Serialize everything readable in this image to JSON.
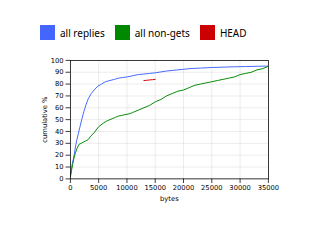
{
  "chart_data": {
    "type": "line",
    "xlabel": "bytes",
    "ylabel": "cumulative %",
    "xlim": [
      0,
      35000
    ],
    "ylim": [
      0,
      100
    ],
    "xticks": [
      0,
      5000,
      10000,
      15000,
      20000,
      25000,
      30000,
      35000
    ],
    "yticks": [
      0,
      10,
      20,
      30,
      40,
      50,
      60,
      70,
      80,
      90,
      100
    ],
    "grid": true,
    "legend": "top",
    "series": [
      {
        "name": "all replies",
        "color": "#4466ff",
        "x": [
          0,
          100,
          200,
          350,
          500,
          700,
          900,
          1100,
          1400,
          1700,
          2000,
          2400,
          2800,
          3200,
          3700,
          4200,
          4800,
          5500,
          6200,
          7000,
          7800,
          8500,
          9200,
          10000,
          11000,
          12000,
          13000,
          14000,
          15000,
          17000,
          19000,
          21000,
          23000,
          25000,
          27000,
          29000,
          31000,
          33000,
          35000
        ],
        "values": [
          3,
          6,
          9,
          13,
          16,
          21,
          27,
          32,
          38,
          44,
          50,
          57,
          63,
          68,
          72,
          75,
          78,
          80,
          82,
          83,
          84,
          85,
          85.5,
          86,
          87,
          88,
          88.5,
          89,
          89.5,
          91,
          92,
          93,
          93.5,
          94,
          94.3,
          94.6,
          94.8,
          95,
          95.2
        ]
      },
      {
        "name": "all non-gets",
        "color": "#008800",
        "x": [
          0,
          100,
          200,
          400,
          600,
          900,
          1200,
          1500,
          1900,
          2300,
          2700,
          3100,
          3600,
          4200,
          5000,
          5800,
          6500,
          7000,
          7500,
          8000,
          8500,
          9000,
          9500,
          10000,
          10500,
          11000,
          12000,
          13000,
          14000,
          15000,
          16000,
          17000,
          18000,
          19000,
          20000,
          21000,
          22000,
          23000,
          24000,
          25000,
          26000,
          27000,
          28000,
          29000,
          30000,
          31000,
          32000,
          33000,
          34000,
          35000
        ],
        "values": [
          2,
          4,
          7,
          12,
          17,
          22,
          26,
          29,
          30,
          31,
          32,
          33,
          36,
          39,
          44,
          47,
          49,
          50,
          51,
          52,
          53,
          53.5,
          54,
          54.5,
          55,
          56,
          58,
          60,
          62,
          65,
          67,
          70,
          72,
          74,
          75,
          77,
          79,
          80,
          81,
          82,
          83,
          84,
          85,
          86,
          88,
          89,
          90,
          92,
          93,
          95
        ]
      },
      {
        "name": "HEAD",
        "color": "#cc0000",
        "x": [
          13000,
          13500,
          14000,
          14500,
          15000
        ],
        "values": [
          83,
          83.2,
          83.5,
          83.7,
          84
        ]
      }
    ]
  }
}
